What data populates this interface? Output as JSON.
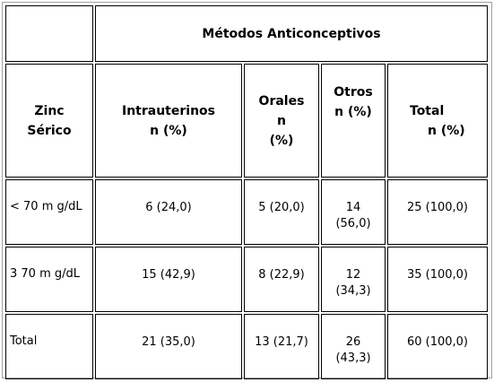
{
  "title": "Métodos Anticonceptivos",
  "headers": {
    "zinc_line1": "Zinc",
    "zinc_line2": "Sérico",
    "intra_line1": "Intrauterinos",
    "intra_line2": "n (%)",
    "orales_line1": "Orales",
    "orales_line2": "n",
    "orales_line3": "(%)",
    "otros_line1": "Otros",
    "otros_line2": "n (%)",
    "total_line1": "Total",
    "total_line2": "n (%)"
  },
  "rows": [
    {
      "label": "< 70 m g/dL",
      "intrauterinos": "6 (24,0)",
      "orales": "5 (20,0)",
      "otros_line1": "14",
      "otros_line2": "(56,0)",
      "total": "25 (100,0)"
    },
    {
      "label": "3 70 m g/dL",
      "intrauterinos": "15 (42,9)",
      "orales": "8 (22,9)",
      "otros_line1": "12",
      "otros_line2": "(34,3)",
      "total": "35 (100,0)"
    },
    {
      "label": "Total",
      "intrauterinos": "21 (35,0)",
      "orales": "13 (21,7)",
      "otros_line1": "26",
      "otros_line2": "(43,3)",
      "total": "60 (100,0)"
    }
  ]
}
